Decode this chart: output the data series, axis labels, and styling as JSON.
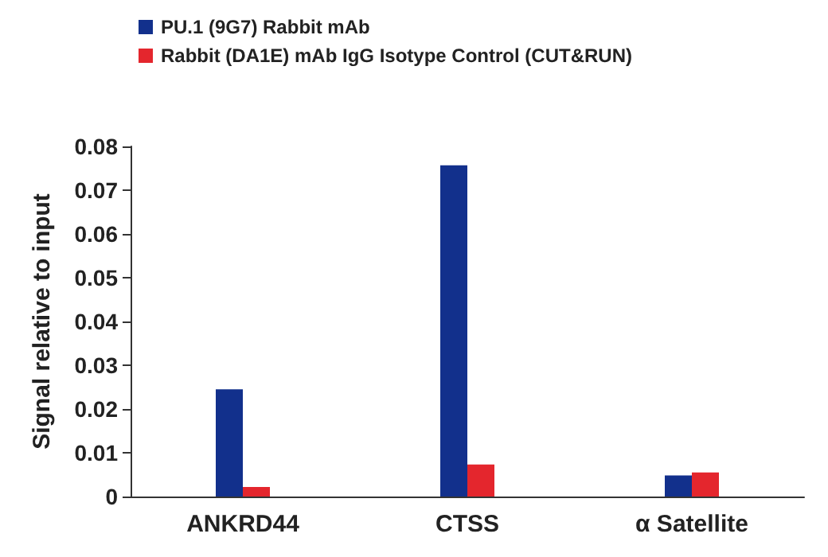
{
  "chart_data": {
    "type": "bar",
    "ylabel": "Signal relative to input",
    "categories": [
      "ANKRD44",
      "CTSS",
      "α Satellite"
    ],
    "series": [
      {
        "name": "PU.1 (9G7) Rabbit mAb",
        "color": "#12308c",
        "values": [
          0.0245,
          0.0757,
          0.0048
        ]
      },
      {
        "name": "Rabbit (DA1E) mAb IgG Isotype Control (CUT&RUN)",
        "color": "#e4262d",
        "values": [
          0.0022,
          0.0073,
          0.0055
        ]
      }
    ],
    "ylim": [
      0,
      0.08
    ],
    "yticks": [
      0,
      0.01,
      0.02,
      0.03,
      0.04,
      0.05,
      0.06,
      0.07,
      0.08
    ],
    "grid": false,
    "legend": "top left"
  }
}
